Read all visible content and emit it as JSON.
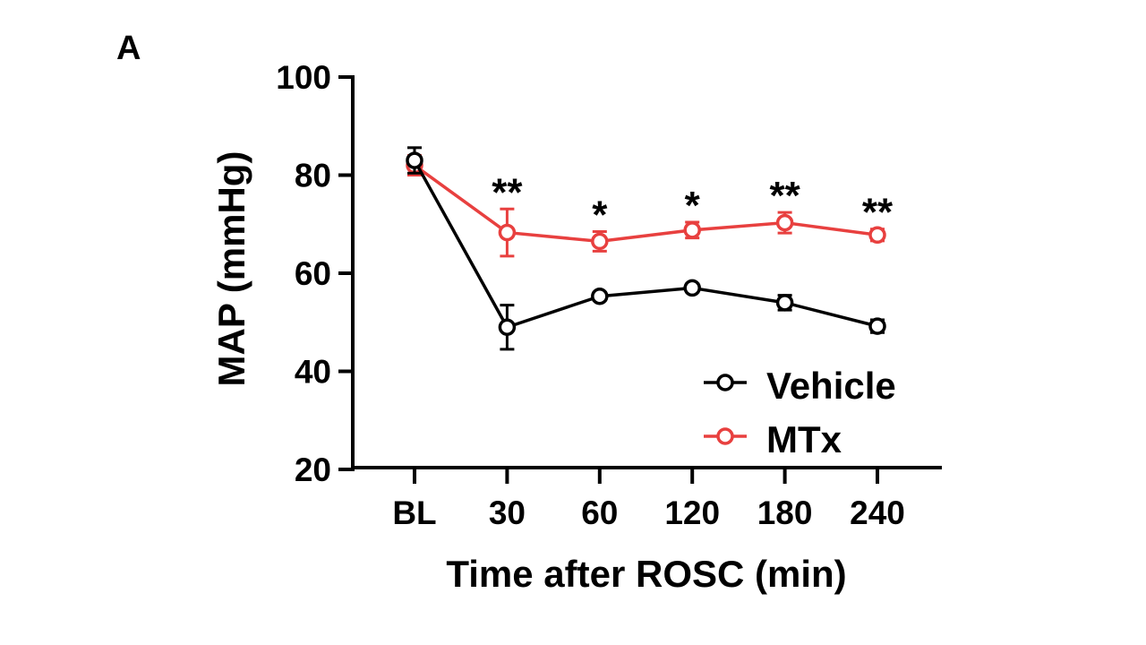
{
  "panel_label": "A",
  "chart_data": {
    "type": "line",
    "xlabel": "Time after ROSC (min)",
    "ylabel": "MAP (mmHg)",
    "categories": [
      "BL",
      "30",
      "60",
      "120",
      "180",
      "240"
    ],
    "ylim": [
      20,
      100
    ],
    "yticks": [
      20,
      40,
      60,
      80,
      100
    ],
    "legend_position": "bottom-right",
    "series": [
      {
        "name": "Vehicle",
        "color": "#000000",
        "values": [
          83,
          49,
          55.3,
          57,
          54,
          49.2
        ],
        "errors": [
          2.6,
          4.5,
          0.8,
          0.8,
          1.5,
          1.3
        ]
      },
      {
        "name": "MTx",
        "color": "#e8403f",
        "values": [
          82,
          68.3,
          66.5,
          68.8,
          70.3,
          67.8
        ],
        "errors": [
          2.0,
          4.8,
          2.0,
          1.6,
          2.1,
          1.2
        ]
      }
    ],
    "annotations": [
      "",
      "**",
      "*",
      "*",
      "**",
      "**"
    ]
  }
}
